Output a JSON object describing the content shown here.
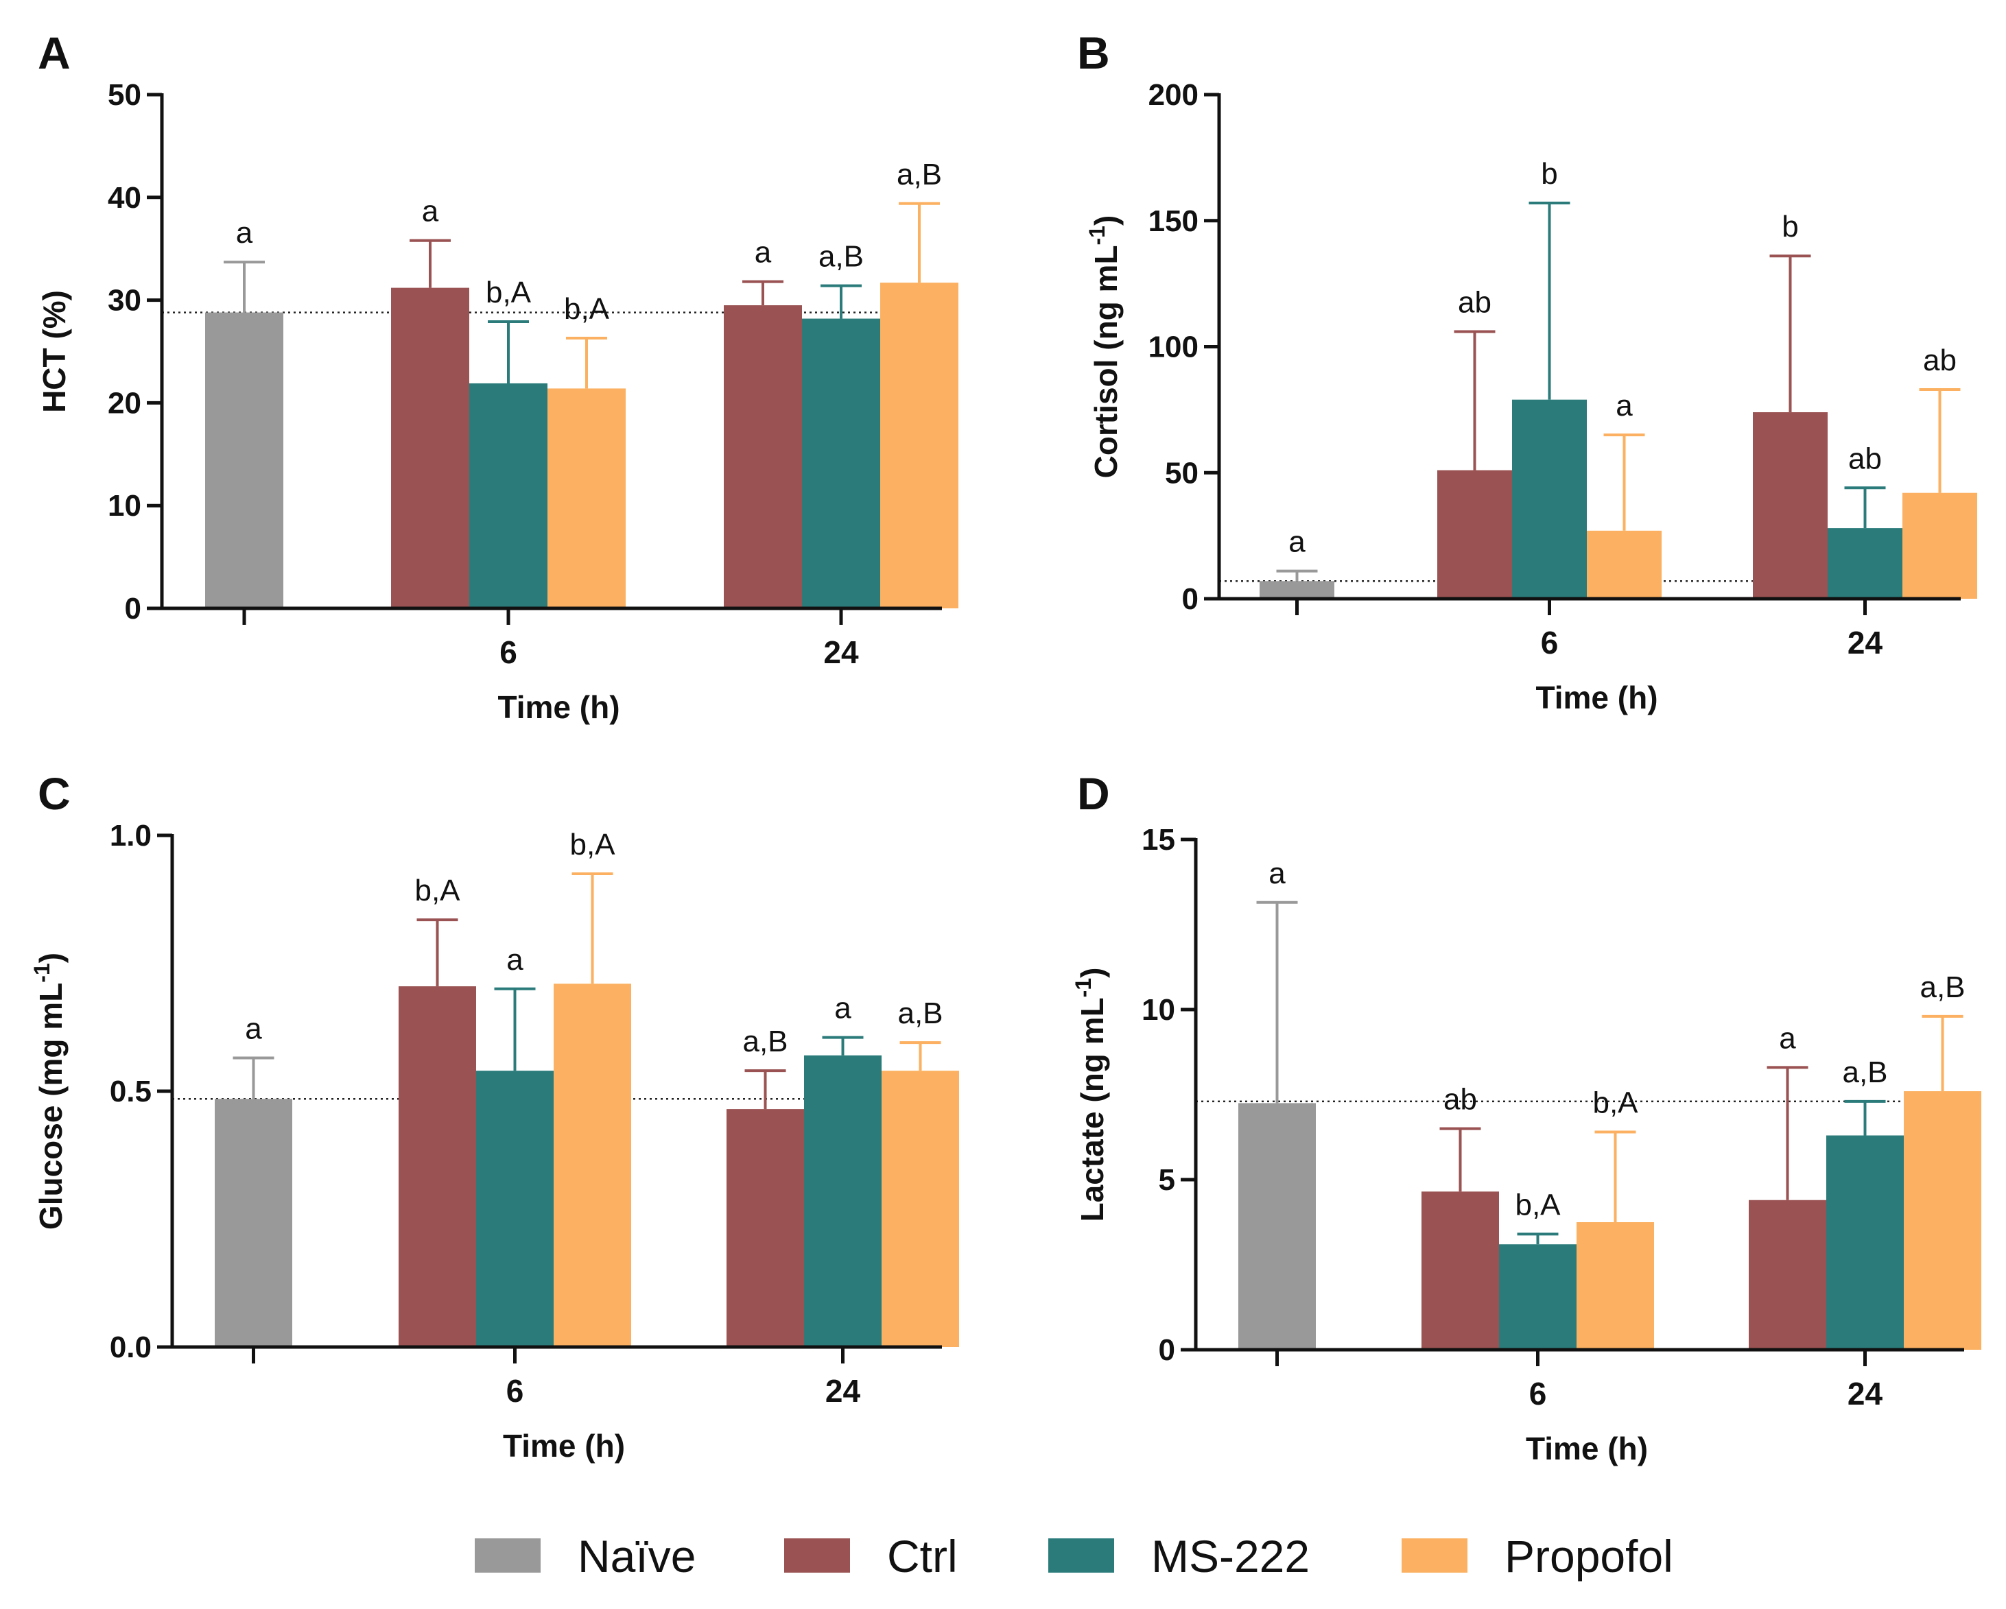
{
  "colors": {
    "Naïve": "#999999",
    "Ctrl": "#9a5252",
    "MS-222": "#2b7b7b",
    "Propofol": "#fbb161",
    "axis": "#111111",
    "reference_line": "#222222"
  },
  "legend": [
    {
      "name": "Naïve",
      "color": "#999999"
    },
    {
      "name": "Ctrl",
      "color": "#9a5252"
    },
    {
      "name": "MS-222",
      "color": "#2b7b7b"
    },
    {
      "name": "Propofol",
      "color": "#fbb161"
    }
  ],
  "chart_data": [
    {
      "panel": "A",
      "type": "bar",
      "ylabel": "HCT (%)",
      "ylabel_superscript": "",
      "xlabel": "Time (h)",
      "ylim": [
        0,
        50
      ],
      "yticks": [
        0,
        10,
        20,
        30,
        40,
        50
      ],
      "ytick_labels": [
        "0",
        "10",
        "20",
        "30",
        "40",
        "50"
      ],
      "categories": [
        "",
        "6",
        "24"
      ],
      "reference_line": 28.8,
      "bars": [
        {
          "group": "",
          "series": "Naïve",
          "value": 28.8,
          "error": 4.9,
          "label": "a"
        },
        {
          "group": "6",
          "series": "Ctrl",
          "value": 31.2,
          "error": 4.6,
          "label": "a"
        },
        {
          "group": "6",
          "series": "MS-222",
          "value": 21.9,
          "error": 6.0,
          "label": "b,A"
        },
        {
          "group": "6",
          "series": "Propofol",
          "value": 21.4,
          "error": 4.9,
          "label": "b,A"
        },
        {
          "group": "24",
          "series": "Ctrl",
          "value": 29.5,
          "error": 2.3,
          "label": "a"
        },
        {
          "group": "24",
          "series": "MS-222",
          "value": 28.2,
          "error": 3.2,
          "label": "a,B"
        },
        {
          "group": "24",
          "series": "Propofol",
          "value": 31.7,
          "error": 7.7,
          "label": "a,B"
        }
      ]
    },
    {
      "panel": "B",
      "type": "bar",
      "ylabel": "Cortisol (ng mL",
      "ylabel_superscript": "-1",
      "ylabel_suffix": ")",
      "xlabel": "Time (h)",
      "ylim": [
        0,
        200
      ],
      "yticks": [
        0,
        50,
        100,
        150,
        200
      ],
      "ytick_labels": [
        "0",
        "50",
        "100",
        "150",
        "200"
      ],
      "categories": [
        "",
        "6",
        "24"
      ],
      "reference_line": 7,
      "bars": [
        {
          "group": "",
          "series": "Naïve",
          "value": 7,
          "error": 4,
          "label": "a"
        },
        {
          "group": "6",
          "series": "Ctrl",
          "value": 51,
          "error": 55,
          "label": "ab"
        },
        {
          "group": "6",
          "series": "MS-222",
          "value": 79,
          "error": 78,
          "label": "b"
        },
        {
          "group": "6",
          "series": "Propofol",
          "value": 27,
          "error": 38,
          "label": "a"
        },
        {
          "group": "24",
          "series": "Ctrl",
          "value": 74,
          "error": 62,
          "label": "b"
        },
        {
          "group": "24",
          "series": "MS-222",
          "value": 28,
          "error": 16,
          "label": "ab"
        },
        {
          "group": "24",
          "series": "Propofol",
          "value": 42,
          "error": 41,
          "label": "ab"
        }
      ]
    },
    {
      "panel": "C",
      "type": "bar",
      "ylabel": "Glucose (mg mL",
      "ylabel_superscript": "-1",
      "ylabel_suffix": ")",
      "xlabel": "Time (h)",
      "ylim": [
        0,
        1.0
      ],
      "yticks": [
        0,
        0.5,
        1.0
      ],
      "ytick_labels": [
        "0.0",
        "0.5",
        "1.0"
      ],
      "categories": [
        "",
        "6",
        "24"
      ],
      "reference_line": 0.485,
      "bars": [
        {
          "group": "",
          "series": "Naïve",
          "value": 0.485,
          "error": 0.08,
          "label": "a"
        },
        {
          "group": "6",
          "series": "Ctrl",
          "value": 0.705,
          "error": 0.13,
          "label": "b,A"
        },
        {
          "group": "6",
          "series": "MS-222",
          "value": 0.54,
          "error": 0.16,
          "label": "a"
        },
        {
          "group": "6",
          "series": "Propofol",
          "value": 0.71,
          "error": 0.215,
          "label": "b,A"
        },
        {
          "group": "24",
          "series": "Ctrl",
          "value": 0.465,
          "error": 0.075,
          "label": "a,B"
        },
        {
          "group": "24",
          "series": "MS-222",
          "value": 0.57,
          "error": 0.035,
          "label": "a"
        },
        {
          "group": "24",
          "series": "Propofol",
          "value": 0.54,
          "error": 0.055,
          "label": "a,B"
        }
      ]
    },
    {
      "panel": "D",
      "type": "bar",
      "ylabel": "Lactate (ng mL",
      "ylabel_superscript": "-1",
      "ylabel_suffix": ")",
      "xlabel": "Time (h)",
      "ylim": [
        0,
        15
      ],
      "yticks": [
        0,
        5,
        10,
        15
      ],
      "ytick_labels": [
        "0",
        "5",
        "10",
        "15"
      ],
      "categories": [
        "",
        "6",
        "24"
      ],
      "reference_line": 7.3,
      "bars": [
        {
          "group": "",
          "series": "Naïve",
          "value": 7.25,
          "error": 5.9,
          "label": "a"
        },
        {
          "group": "6",
          "series": "Ctrl",
          "value": 4.65,
          "error": 1.85,
          "label": "ab"
        },
        {
          "group": "6",
          "series": "MS-222",
          "value": 3.1,
          "error": 0.3,
          "label": "b,A"
        },
        {
          "group": "6",
          "series": "Propofol",
          "value": 3.75,
          "error": 2.65,
          "label": "b,A"
        },
        {
          "group": "24",
          "series": "Ctrl",
          "value": 4.4,
          "error": 3.9,
          "label": "a"
        },
        {
          "group": "24",
          "series": "MS-222",
          "value": 6.3,
          "error": 1.0,
          "label": "a,B"
        },
        {
          "group": "24",
          "series": "Propofol",
          "value": 7.6,
          "error": 2.2,
          "label": "a,B"
        }
      ]
    }
  ]
}
